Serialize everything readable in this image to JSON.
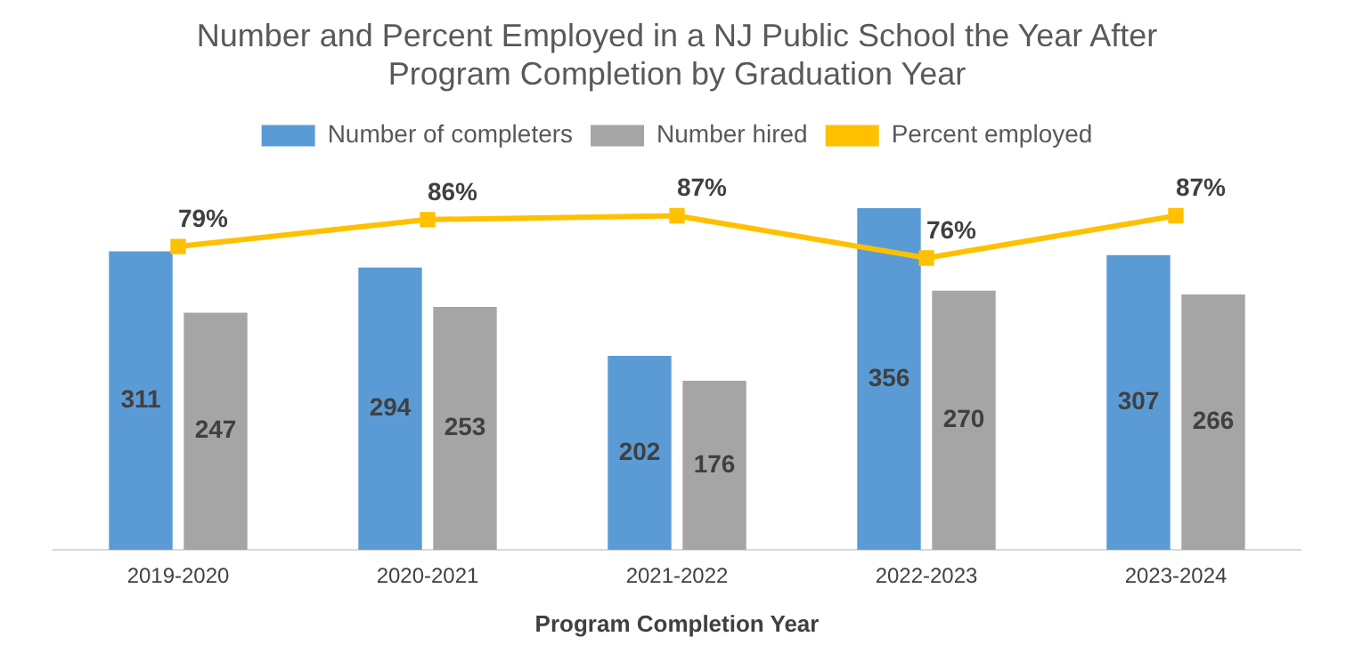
{
  "chart_data": {
    "type": "bar",
    "title": "Number and Percent Employed in a NJ Public School the Year After Program Completion by Graduation Year",
    "xlabel": "Program Completion Year",
    "categories": [
      "2019-2020",
      "2020-2021",
      "2021-2022",
      "2022-2023",
      "2023-2024"
    ],
    "series": [
      {
        "name": "Number of completers",
        "color": "#5b9bd5",
        "values": [
          311,
          294,
          202,
          356,
          307
        ],
        "value_labels": [
          "311",
          "294",
          "202",
          "356",
          "307"
        ]
      },
      {
        "name": "Number hired",
        "color": "#a5a5a5",
        "values": [
          247,
          253,
          176,
          270,
          266
        ],
        "value_labels": [
          "247",
          "253",
          "176",
          "270",
          "266"
        ]
      },
      {
        "name": "Percent employed",
        "type": "line",
        "axis": "y2",
        "color": "#ffc000",
        "values": [
          79,
          86,
          87,
          76,
          87
        ],
        "value_labels": [
          "79%",
          "86%",
          "87%",
          "76%",
          "87%"
        ]
      }
    ],
    "tick_labels": "x",
    "grid": false,
    "legend": "top",
    "marker": "square",
    "line_style": "solid"
  }
}
